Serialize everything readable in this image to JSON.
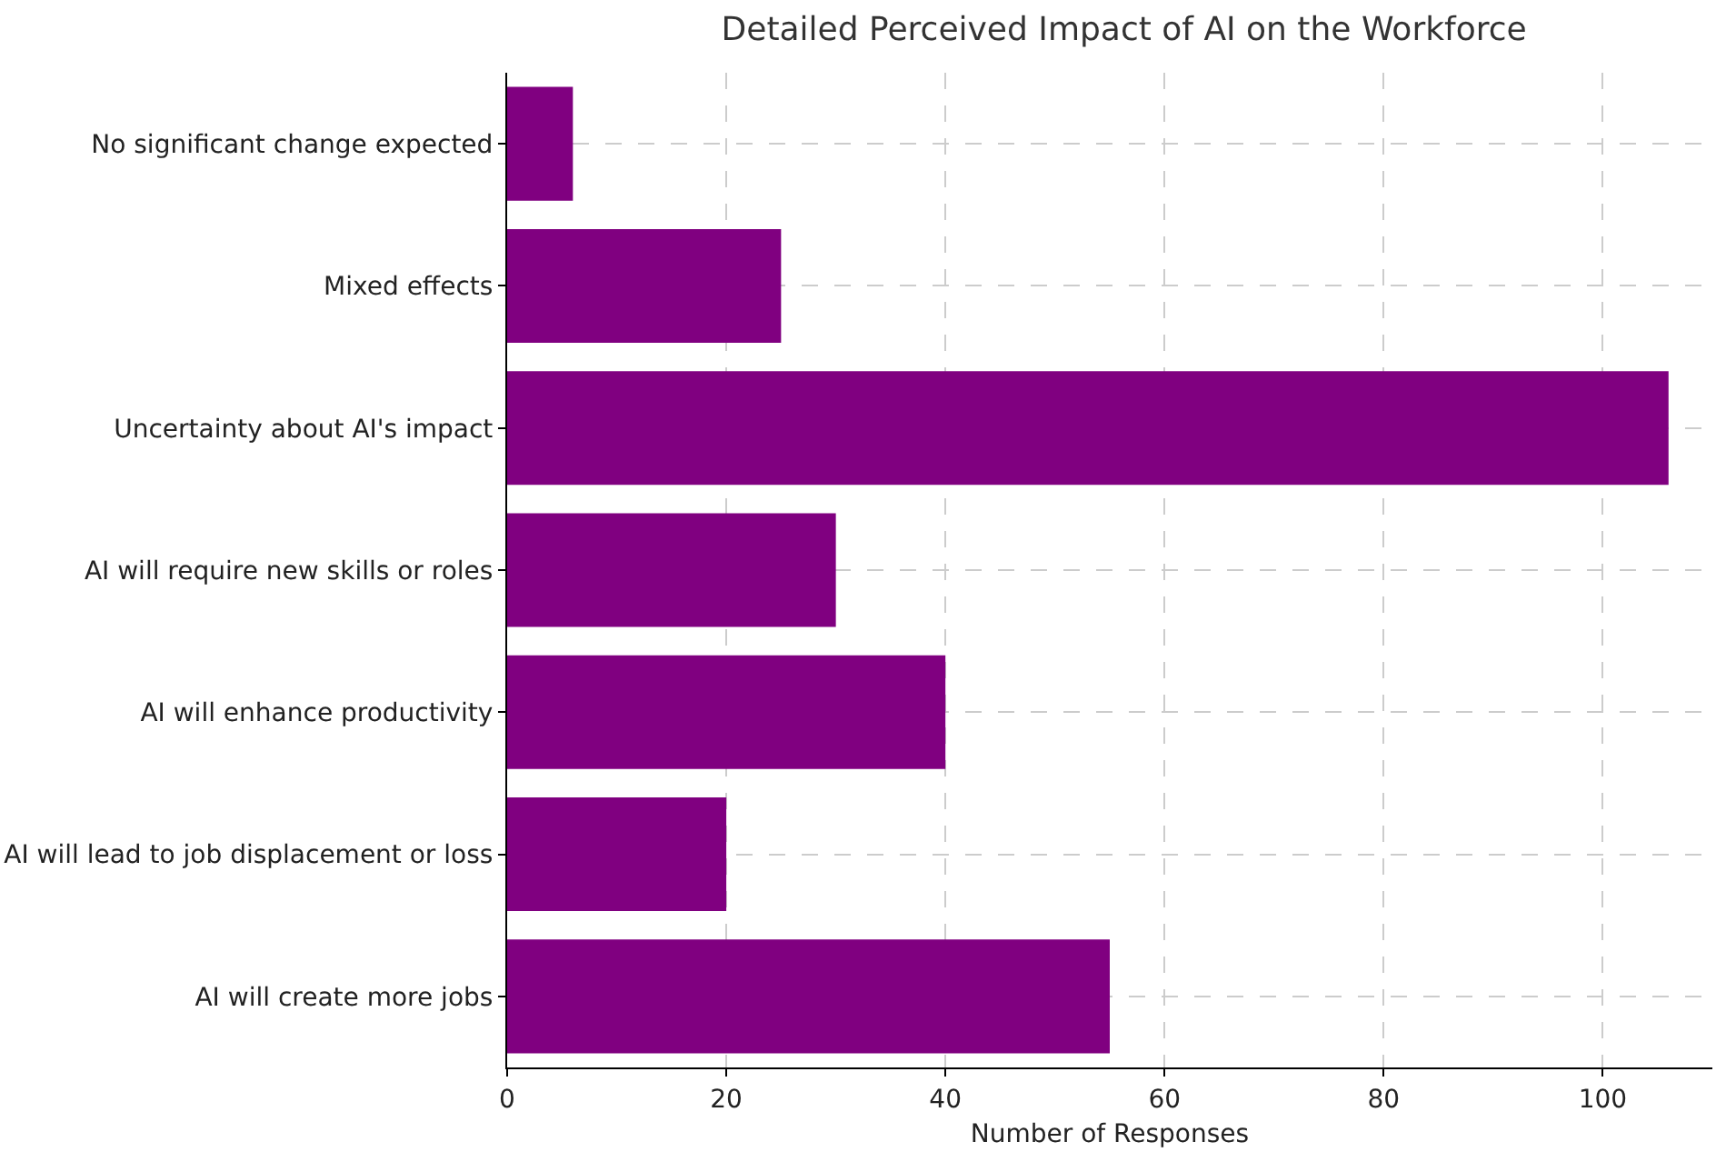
{
  "chart_data": {
    "type": "bar",
    "orientation": "horizontal",
    "title": "Detailed Perceived Impact of AI on the Workforce",
    "xlabel": "Number of Responses",
    "categories": [
      "No significant change expected",
      "Mixed effects",
      "Uncertainty about AI's impact",
      "AI will require new skills or roles",
      "AI will enhance productivity",
      "AI will lead to job displacement or loss",
      "AI will create more jobs"
    ],
    "values": [
      6,
      25,
      106,
      30,
      40,
      20,
      55
    ],
    "color": "#800080",
    "xlim": [
      0,
      110
    ],
    "xticks": [
      0,
      20,
      40,
      60,
      80,
      100
    ],
    "grid": true
  }
}
